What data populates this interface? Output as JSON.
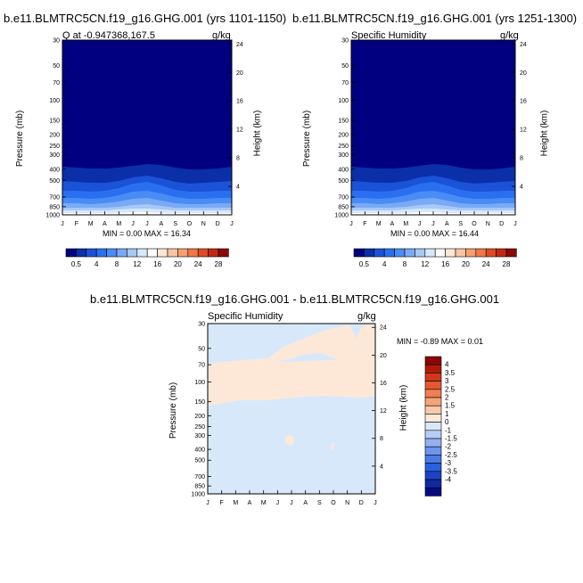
{
  "colors": {
    "scale": [
      "#000080",
      "#0a2fa8",
      "#1a52d8",
      "#2a6ff0",
      "#4a8cf5",
      "#7aaaf5",
      "#a8c8f5",
      "#d6e8fb",
      "#ffffff",
      "#fde7d8",
      "#f8c5a4",
      "#f4a070",
      "#ef7848",
      "#e04a25",
      "#c42810",
      "#8a0808"
    ],
    "diff": [
      "#0a0a80",
      "#0f2aa0",
      "#1a44c4",
      "#2a5fe0",
      "#4a7ae8",
      "#6f95ee",
      "#93b2f2",
      "#b8cdf6",
      "#d8e8fb",
      "#fde8d8",
      "#f8c8a8",
      "#f4a47a",
      "#ef7e52",
      "#e45a30",
      "#d03818",
      "#b01a08",
      "#8a0606"
    ],
    "pos_anom": "#fde8d8",
    "neg_anom": "#d8e8fb"
  },
  "panel1": {
    "title": "b.e11.BLMTRC5CN.f19_g16.GHG.001 (yrs 1101-1150)",
    "left_label": "Q at -0.947368,167.5",
    "right_label": "g/kg",
    "minmax": "MIN =   0.00 MAX =  16.34"
  },
  "panel2": {
    "title": "b.e11.BLMTRC5CN.f19_g16.GHG.001 (yrs 1251-1300)",
    "left_label": "Specific Humidity",
    "right_label": "g/kg",
    "minmax": "MIN =   0.00 MAX =  16.44"
  },
  "panel3": {
    "title": "b.e11.BLMTRC5CN.f19_g16.GHG.001 - b.e11.BLMTRC5CN.f19_g16.GHG.001",
    "left_label": "Specific Humidity",
    "right_label": "g/kg",
    "minmax": "MIN =  -0.89 MAX =   0.01"
  },
  "axes": {
    "ylabel": "Pressure (mb)",
    "y2label": "Height (km)",
    "pressure_ticks": [
      "30",
      "50",
      "70",
      "100",
      "150",
      "200",
      "250",
      "300",
      "400",
      "500",
      "700",
      "850",
      "1000"
    ],
    "height_ticks": [
      "24",
      "20",
      "16",
      "12",
      "8",
      "4"
    ],
    "month_ticks": [
      "J",
      "F",
      "M",
      "A",
      "M",
      "J",
      "J",
      "A",
      "S",
      "O",
      "N",
      "D",
      "J"
    ]
  },
  "colorbar_top": {
    "labels": [
      "0.5",
      "4",
      "8",
      "12",
      "16",
      "20",
      "24",
      "28"
    ]
  },
  "colorbar_diff": {
    "labels": [
      "4",
      "3.5",
      "3",
      "2.5",
      "2",
      "1.5",
      "1",
      "0",
      "-1",
      "-1.5",
      "-2",
      "-2.5",
      "-3",
      "-3.5",
      "-4"
    ]
  },
  "chart_data": [
    {
      "type": "heatmap",
      "title": "b.e11.BLMTRC5CN.f19_g16.GHG.001 (yrs 1101-1150)",
      "subtitle": "Q at -0.947368,167.5",
      "units": "g/kg",
      "ylabel": "Pressure (mb)",
      "y2label": "Height (km)",
      "x": [
        "J",
        "F",
        "M",
        "A",
        "M",
        "J",
        "J",
        "A",
        "S",
        "O",
        "N",
        "D",
        "J"
      ],
      "ylim": [
        1000,
        30
      ],
      "yscale": "log",
      "y2lim": [
        0,
        25
      ],
      "min": 0.0,
      "max": 16.34
    },
    {
      "type": "heatmap",
      "title": "b.e11.BLMTRC5CN.f19_g16.GHG.001 (yrs 1251-1300)",
      "subtitle": "Specific Humidity",
      "units": "g/kg",
      "ylabel": "Pressure (mb)",
      "y2label": "Height (km)",
      "x": [
        "J",
        "F",
        "M",
        "A",
        "M",
        "J",
        "J",
        "A",
        "S",
        "O",
        "N",
        "D",
        "J"
      ],
      "ylim": [
        1000,
        30
      ],
      "yscale": "log",
      "y2lim": [
        0,
        25
      ],
      "min": 0.0,
      "max": 16.44
    },
    {
      "type": "heatmap",
      "title": "b.e11.BLMTRC5CN.f19_g16.GHG.001 - b.e11.BLMTRC5CN.f19_g16.GHG.001",
      "subtitle": "Specific Humidity",
      "units": "g/kg",
      "ylabel": "Pressure (mb)",
      "y2label": "Height (km)",
      "x": [
        "J",
        "F",
        "M",
        "A",
        "M",
        "J",
        "J",
        "A",
        "S",
        "O",
        "N",
        "D",
        "J"
      ],
      "ylim": [
        1000,
        30
      ],
      "yscale": "log",
      "y2lim": [
        0,
        25
      ],
      "min": -0.89,
      "max": 0.01
    }
  ]
}
